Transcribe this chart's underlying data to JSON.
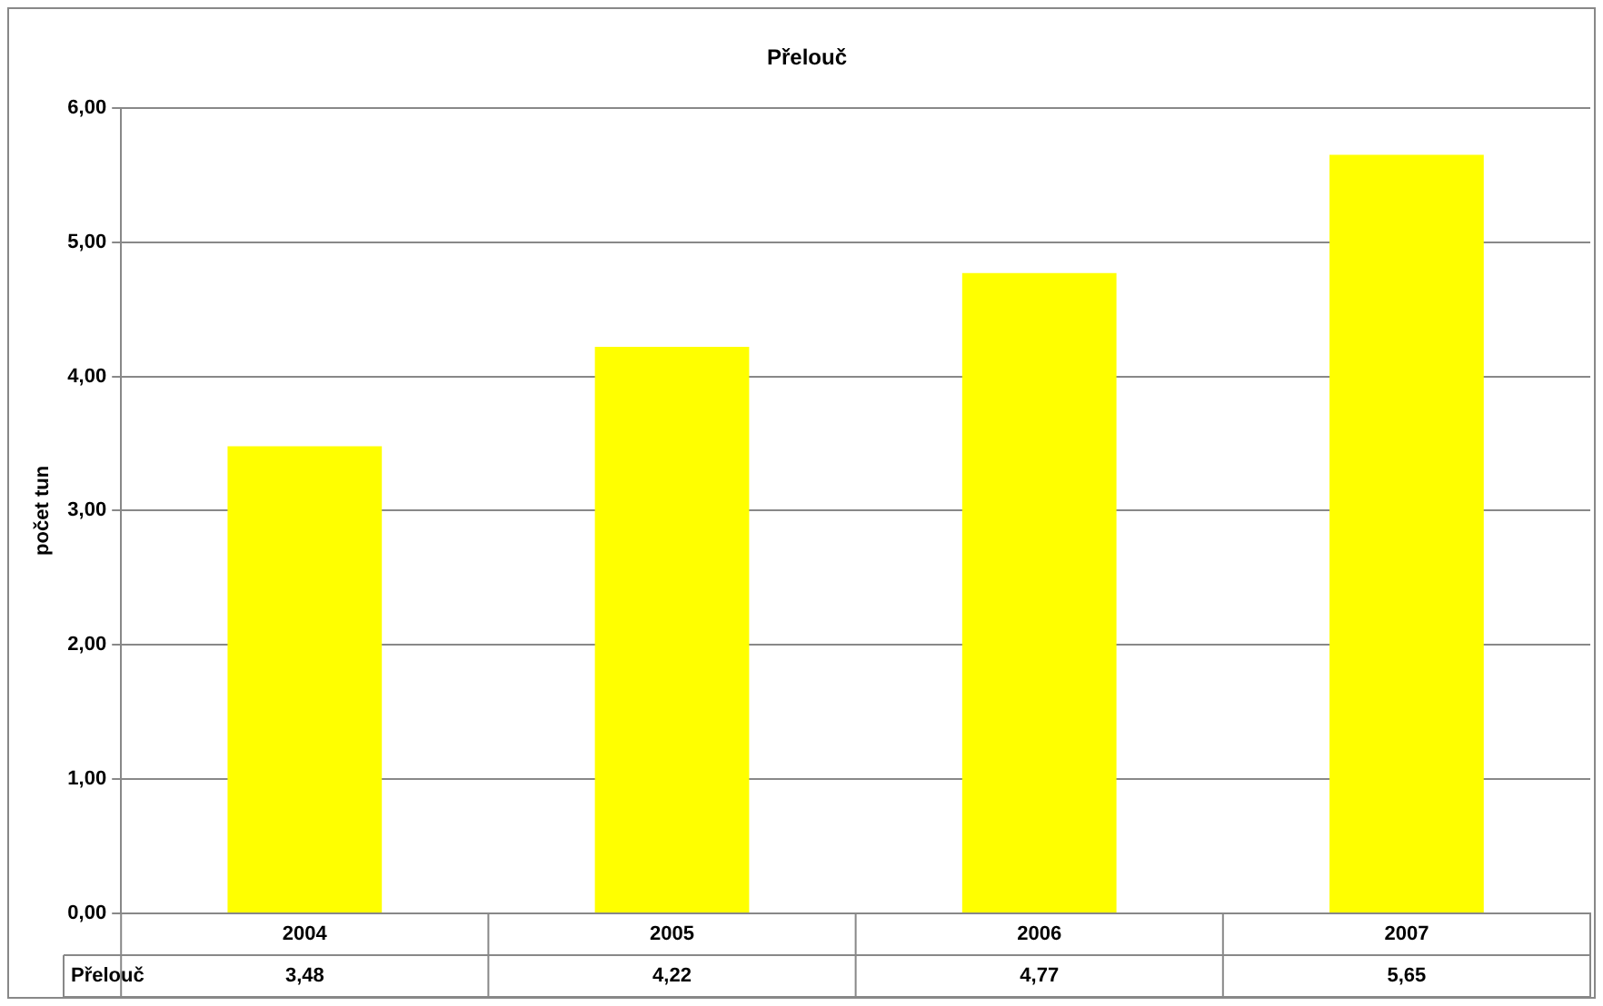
{
  "chart_data": {
    "type": "bar",
    "title": "Přelouč",
    "ylabel": "počet tun",
    "categories": [
      "2004",
      "2005",
      "2006",
      "2007"
    ],
    "series": [
      {
        "name": "Přelouč",
        "color": "#ffff00",
        "values": [
          3.48,
          4.22,
          4.77,
          5.65
        ],
        "value_labels": [
          "3,48",
          "4,22",
          "4,77",
          "5,65"
        ]
      }
    ],
    "ylim": [
      0,
      6
    ],
    "yticks": [
      {
        "value": 0,
        "label": "0,00"
      },
      {
        "value": 1,
        "label": "1,00"
      },
      {
        "value": 2,
        "label": "2,00"
      },
      {
        "value": 3,
        "label": "3,00"
      },
      {
        "value": 4,
        "label": "4,00"
      },
      {
        "value": 5,
        "label": "5,00"
      },
      {
        "value": 6,
        "label": "6,00"
      }
    ],
    "grid": "y",
    "legend": false
  }
}
